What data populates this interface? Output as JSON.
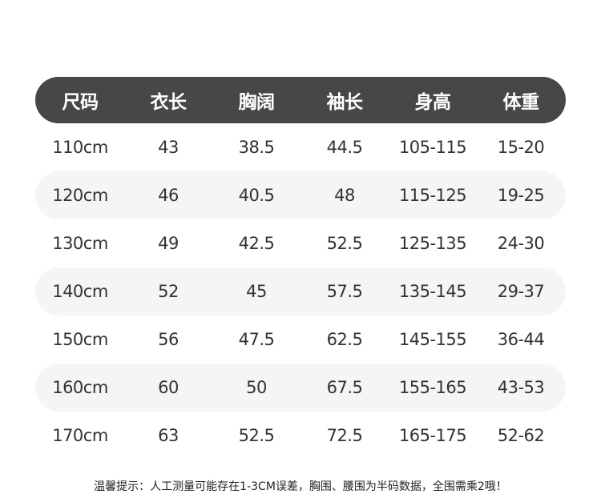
{
  "headers": [
    "尺码",
    "衣长",
    "胸阔",
    "袖长",
    "身高",
    "体重"
  ],
  "rows": [
    [
      "110cm",
      "43",
      "38.5",
      "44.5",
      "105-115",
      "15-20"
    ],
    [
      "120cm",
      "46",
      "40.5",
      "48",
      "115-125",
      "19-25"
    ],
    [
      "130cm",
      "49",
      "42.5",
      "52.5",
      "125-135",
      "24-30"
    ],
    [
      "140cm",
      "52",
      "45",
      "57.5",
      "135-145",
      "29-37"
    ],
    [
      "150cm",
      "56",
      "47.5",
      "62.5",
      "145-155",
      "36-44"
    ],
    [
      "160cm",
      "60",
      "50",
      "67.5",
      "155-165",
      "43-53"
    ],
    [
      "170cm",
      "63",
      "52.5",
      "72.5",
      "165-175",
      "52-62"
    ]
  ],
  "note": "温馨提示：人工测量可能存在1-3CM误差，胸围、腰围为半码数据，全围需乘2哦！",
  "colors": {
    "header_bg": "#474747",
    "stripe_bg": "#f5f5f5"
  }
}
